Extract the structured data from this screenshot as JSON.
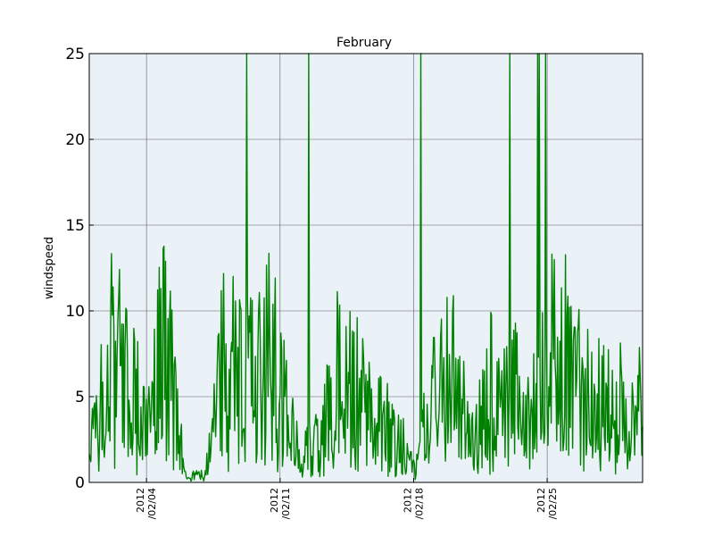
{
  "chart_data": {
    "type": "line",
    "title": "February",
    "xlabel": "",
    "ylabel": "windspeed",
    "ylim": [
      0,
      25
    ],
    "yticks": [
      0,
      5,
      10,
      15,
      20,
      25
    ],
    "xlim": [
      "2012-02-01",
      "2012-03-01"
    ],
    "xticks": [
      {
        "date": "2012-02-04",
        "line1": "2012",
        "line2": "/02/04"
      },
      {
        "date": "2012-02-11",
        "line1": "2012",
        "line2": "/02/11"
      },
      {
        "date": "2012-02-18",
        "line1": "2012",
        "line2": "/02/18"
      },
      {
        "date": "2012-02-25",
        "line1": "2012",
        "line2": "/02/25"
      }
    ],
    "grid": true,
    "plot_background": "#eaf1f7",
    "line_color": "#008000",
    "series": [
      {
        "x": [
          "2012-02-01",
          "2012-02-02",
          "2012-02-03",
          "2012-02-04",
          "2012-02-05",
          "2012-02-06",
          "2012-02-07",
          "2012-02-08",
          "2012-02-09",
          "2012-02-10",
          "2012-02-11",
          "2012-02-12",
          "2012-02-13",
          "2012-02-14",
          "2012-02-15",
          "2012-02-16",
          "2012-02-17",
          "2012-02-18",
          "2012-02-19",
          "2012-02-20",
          "2012-02-21",
          "2012-02-22",
          "2012-02-23",
          "2012-02-24",
          "2012-02-25",
          "2012-02-26",
          "2012-02-27",
          "2012-02-28",
          "2012-02-29"
        ],
        "y": [
          2.5,
          14.4,
          11.0,
          6.0,
          16.5,
          0.8,
          0.8,
          12.7,
          11.5,
          14.7,
          12.3,
          2.5,
          4.5,
          11.2,
          9.9,
          7.0,
          6.0,
          1.4,
          10.0,
          13.5,
          3.6,
          10.5,
          10.8,
          6.5,
          15.3,
          13.5,
          9.3,
          9.6,
          8.8
        ]
      }
    ]
  }
}
